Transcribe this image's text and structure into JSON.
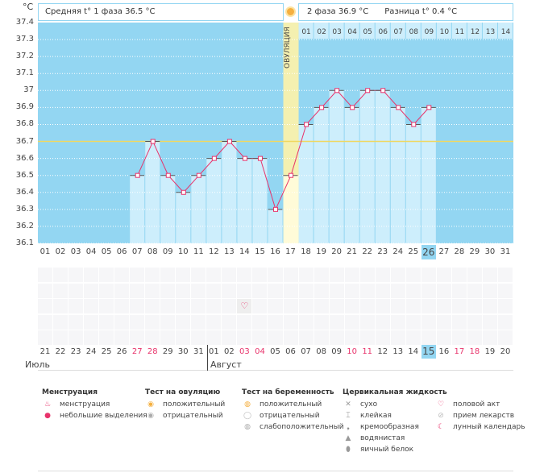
{
  "unit_label": "°C",
  "header": {
    "phase1": "Средняя t° 1 фаза 36.5 °C",
    "phase2": "2 фаза 36.9 °C",
    "diff": "Разница t° 0.4 °C"
  },
  "ovulation_label": "ОВУЛЯЦИЯ",
  "colors": {
    "sky": "#93d6f2",
    "bar": "#cdeefc",
    "ovulation": "#fff3a8",
    "line": "#e8336b",
    "coverline": "#f0d860",
    "today": "#93d6f2",
    "red": "#e8336b"
  },
  "chart_data": {
    "type": "line",
    "ylim": [
      36.1,
      37.4
    ],
    "yticks": [
      "37.4",
      "37.3",
      "37.2",
      "37.1",
      "37",
      "36.9",
      "36.8",
      "36.7",
      "36.6",
      "36.5",
      "36.4",
      "36.3",
      "36.2",
      "36.1"
    ],
    "days": [
      "01",
      "02",
      "03",
      "04",
      "05",
      "06",
      "07",
      "08",
      "09",
      "10",
      "11",
      "12",
      "13",
      "14",
      "15",
      "16",
      "17",
      "18",
      "19",
      "20",
      "21",
      "22",
      "23",
      "24",
      "25",
      "26",
      "27",
      "28",
      "29",
      "30",
      "31"
    ],
    "temps": [
      null,
      null,
      null,
      null,
      null,
      null,
      36.5,
      36.7,
      36.5,
      36.4,
      36.5,
      36.6,
      36.7,
      36.6,
      36.6,
      36.3,
      36.5,
      36.8,
      36.9,
      37.0,
      36.9,
      37.0,
      37.0,
      36.9,
      36.8,
      36.9,
      null,
      null,
      null,
      null,
      null
    ],
    "coverline": 36.7,
    "ovulation_day": "17",
    "today_day": "26",
    "phase2_days": [
      "01",
      "02",
      "03",
      "04",
      "05",
      "06",
      "07",
      "08",
      "09",
      "10",
      "11",
      "12",
      "13",
      "14"
    ],
    "calendar_dates": [
      "21",
      "22",
      "23",
      "24",
      "25",
      "26",
      "27",
      "28",
      "29",
      "30",
      "31",
      "01",
      "02",
      "03",
      "04",
      "05",
      "06",
      "07",
      "08",
      "09",
      "10",
      "11",
      "12",
      "13",
      "14",
      "15",
      "16",
      "17",
      "18",
      "19",
      "20"
    ],
    "red_dates": [
      6,
      7,
      13,
      14,
      20,
      21,
      27,
      28
    ],
    "today_index": 25,
    "months": [
      "Июль",
      "Август"
    ]
  },
  "events": [
    {
      "day_index": 13,
      "row": 2,
      "icon": "heart-icon",
      "glyph": "♡"
    }
  ],
  "legend": [
    {
      "title": "Менструация",
      "items": [
        {
          "icon": "menstruation-icon",
          "glyph": "♨",
          "color": "#e8336b",
          "label": "менструация"
        },
        {
          "icon": "spotting-icon",
          "glyph": "●",
          "color": "#e8336b",
          "label": "небольшие выделения"
        }
      ]
    },
    {
      "title": "Тест на овуляцию",
      "items": [
        {
          "icon": "positive-ovulation-icon",
          "glyph": "◉",
          "color": "#f5b040",
          "label": "положительный"
        },
        {
          "icon": "negative-ovulation-icon",
          "glyph": "◉",
          "color": "#aaa",
          "label": "отрицательный"
        }
      ]
    },
    {
      "title": "Тест на беременность",
      "items": [
        {
          "icon": "positive-pregnancy-icon",
          "glyph": "◍",
          "color": "#f5b040",
          "label": "положительный"
        },
        {
          "icon": "negative-pregnancy-icon",
          "glyph": "◯",
          "color": "#bbb",
          "label": "отрицательный"
        },
        {
          "icon": "weak-pregnancy-icon",
          "glyph": "◍",
          "color": "#aaa",
          "label": "слабоположительный"
        }
      ]
    },
    {
      "title": "Цервикальная жидкость",
      "items": [
        {
          "icon": "dry-icon",
          "glyph": "✕",
          "color": "#999",
          "label": "сухо"
        },
        {
          "icon": "sticky-icon",
          "glyph": "⌶",
          "color": "#888",
          "label": "клейкая"
        },
        {
          "icon": "creamy-icon",
          "glyph": "❟",
          "color": "#888",
          "label": "кремообразная"
        },
        {
          "icon": "watery-icon",
          "glyph": "▲",
          "color": "#999",
          "label": "водянистая"
        },
        {
          "icon": "eggwhite-icon",
          "glyph": "⬮",
          "color": "#999",
          "label": "яичный белок"
        }
      ]
    },
    {
      "title": "",
      "items": [
        {
          "icon": "heart-icon",
          "glyph": "♡",
          "color": "#e8336b",
          "label": "половой акт"
        },
        {
          "icon": "pill-icon",
          "glyph": "⊘",
          "color": "#bbb",
          "label": "прием лекарств"
        },
        {
          "icon": "moon-icon",
          "glyph": "☾",
          "color": "#e8336b",
          "label": "лунный календарь"
        }
      ]
    }
  ]
}
